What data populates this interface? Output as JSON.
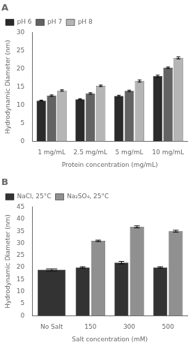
{
  "chart_data": [
    {
      "type": "bar",
      "title": "A",
      "categories": [
        "1 mg/mL",
        "2.5 mg/mL",
        "5 mg/mL",
        "10 mg/mL"
      ],
      "series": [
        {
          "name": "pH 6",
          "color": "#2a2a2a",
          "values": [
            11.2,
            11.6,
            12.5,
            18.0
          ],
          "errors": [
            0.15,
            0.15,
            0.2,
            0.25
          ]
        },
        {
          "name": "pH 7",
          "color": "#636363",
          "values": [
            12.6,
            13.2,
            13.9,
            20.3
          ],
          "errors": [
            0.2,
            0.2,
            0.2,
            0.2
          ]
        },
        {
          "name": "pH 8",
          "color": "#b5b5b5",
          "values": [
            14.0,
            15.3,
            16.6,
            23.0
          ],
          "errors": [
            0.2,
            0.2,
            0.3,
            0.3
          ]
        }
      ],
      "xlabel": "Protein concentration (mg/mL)",
      "ylabel": "Hydrodynamic Diameter (nm)",
      "ylim": [
        0,
        30
      ],
      "yticks": [
        0,
        5,
        10,
        15,
        20,
        25,
        30
      ],
      "grid": false,
      "legend": "upper left"
    },
    {
      "type": "bar",
      "title": "B",
      "categories": [
        "No Salt",
        "150",
        "300",
        "500"
      ],
      "series": [
        {
          "name": "NaCl, 25°C",
          "color": "#333333",
          "values": [
            19.0,
            20.0,
            22.0,
            20.0
          ],
          "errors": [
            0.4,
            0.3,
            0.5,
            0.3
          ]
        },
        {
          "name": "Na₂SO₄, 25°C",
          "color": "#909090",
          "values": [
            null,
            31.0,
            36.8,
            35.0
          ],
          "errors": [
            null,
            0.3,
            0.4,
            0.4
          ]
        }
      ],
      "xlabel": "Salt concentration (mM)",
      "ylabel": "Hydrodynamic Diameter (nm)",
      "ylim": [
        0,
        45
      ],
      "yticks": [
        0,
        5,
        10,
        15,
        20,
        25,
        30,
        35,
        40,
        45
      ],
      "grid": false,
      "legend": "upper left"
    }
  ]
}
